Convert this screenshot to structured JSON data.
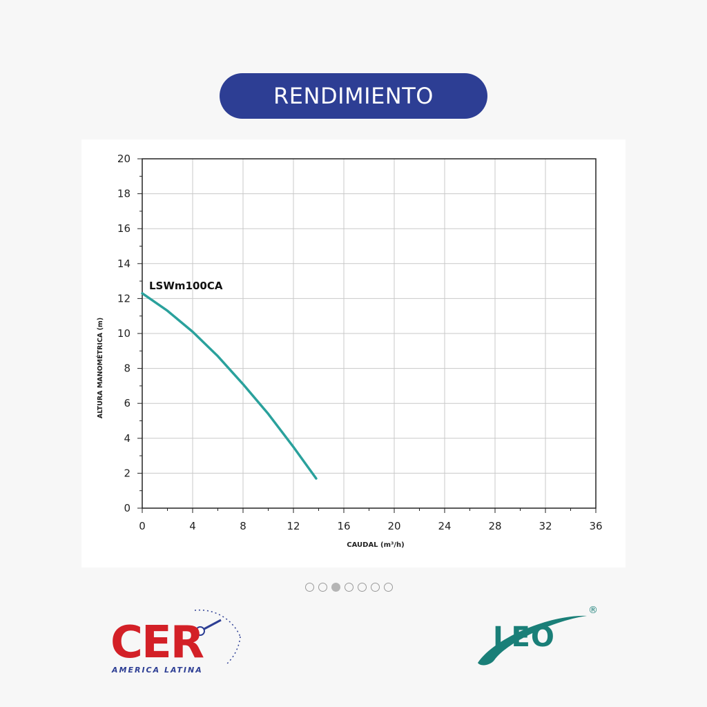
{
  "header": {
    "title": "RENDIMIENTO"
  },
  "carousel": {
    "count": 7,
    "active_index": 2
  },
  "logos": {
    "left": {
      "text": "CER",
      "subtitle": "AMERICA LATINA",
      "color": "#d32027",
      "subtitle_color": "#2d3e94"
    },
    "right": {
      "text": "LEO",
      "mark": "®",
      "color": "#1a7f78"
    }
  },
  "chart_data": {
    "type": "line",
    "xlabel": "CAUDAL (m³/h)",
    "ylabel": "ALTURA MANOMÉTRICA (m)",
    "xlim": [
      0,
      36
    ],
    "ylim": [
      0,
      20
    ],
    "xticks": [
      0,
      4,
      8,
      12,
      16,
      20,
      24,
      28,
      32,
      36
    ],
    "yticks": [
      0,
      2,
      4,
      6,
      8,
      10,
      12,
      14,
      16,
      18,
      20
    ],
    "grid": true,
    "series": [
      {
        "name": "LSWm100CA",
        "color": "#2aa19c",
        "x": [
          0,
          2,
          4,
          6,
          8,
          10,
          12,
          13.8
        ],
        "y": [
          12.3,
          11.3,
          10.1,
          8.7,
          7.1,
          5.4,
          3.5,
          1.7
        ]
      }
    ]
  }
}
